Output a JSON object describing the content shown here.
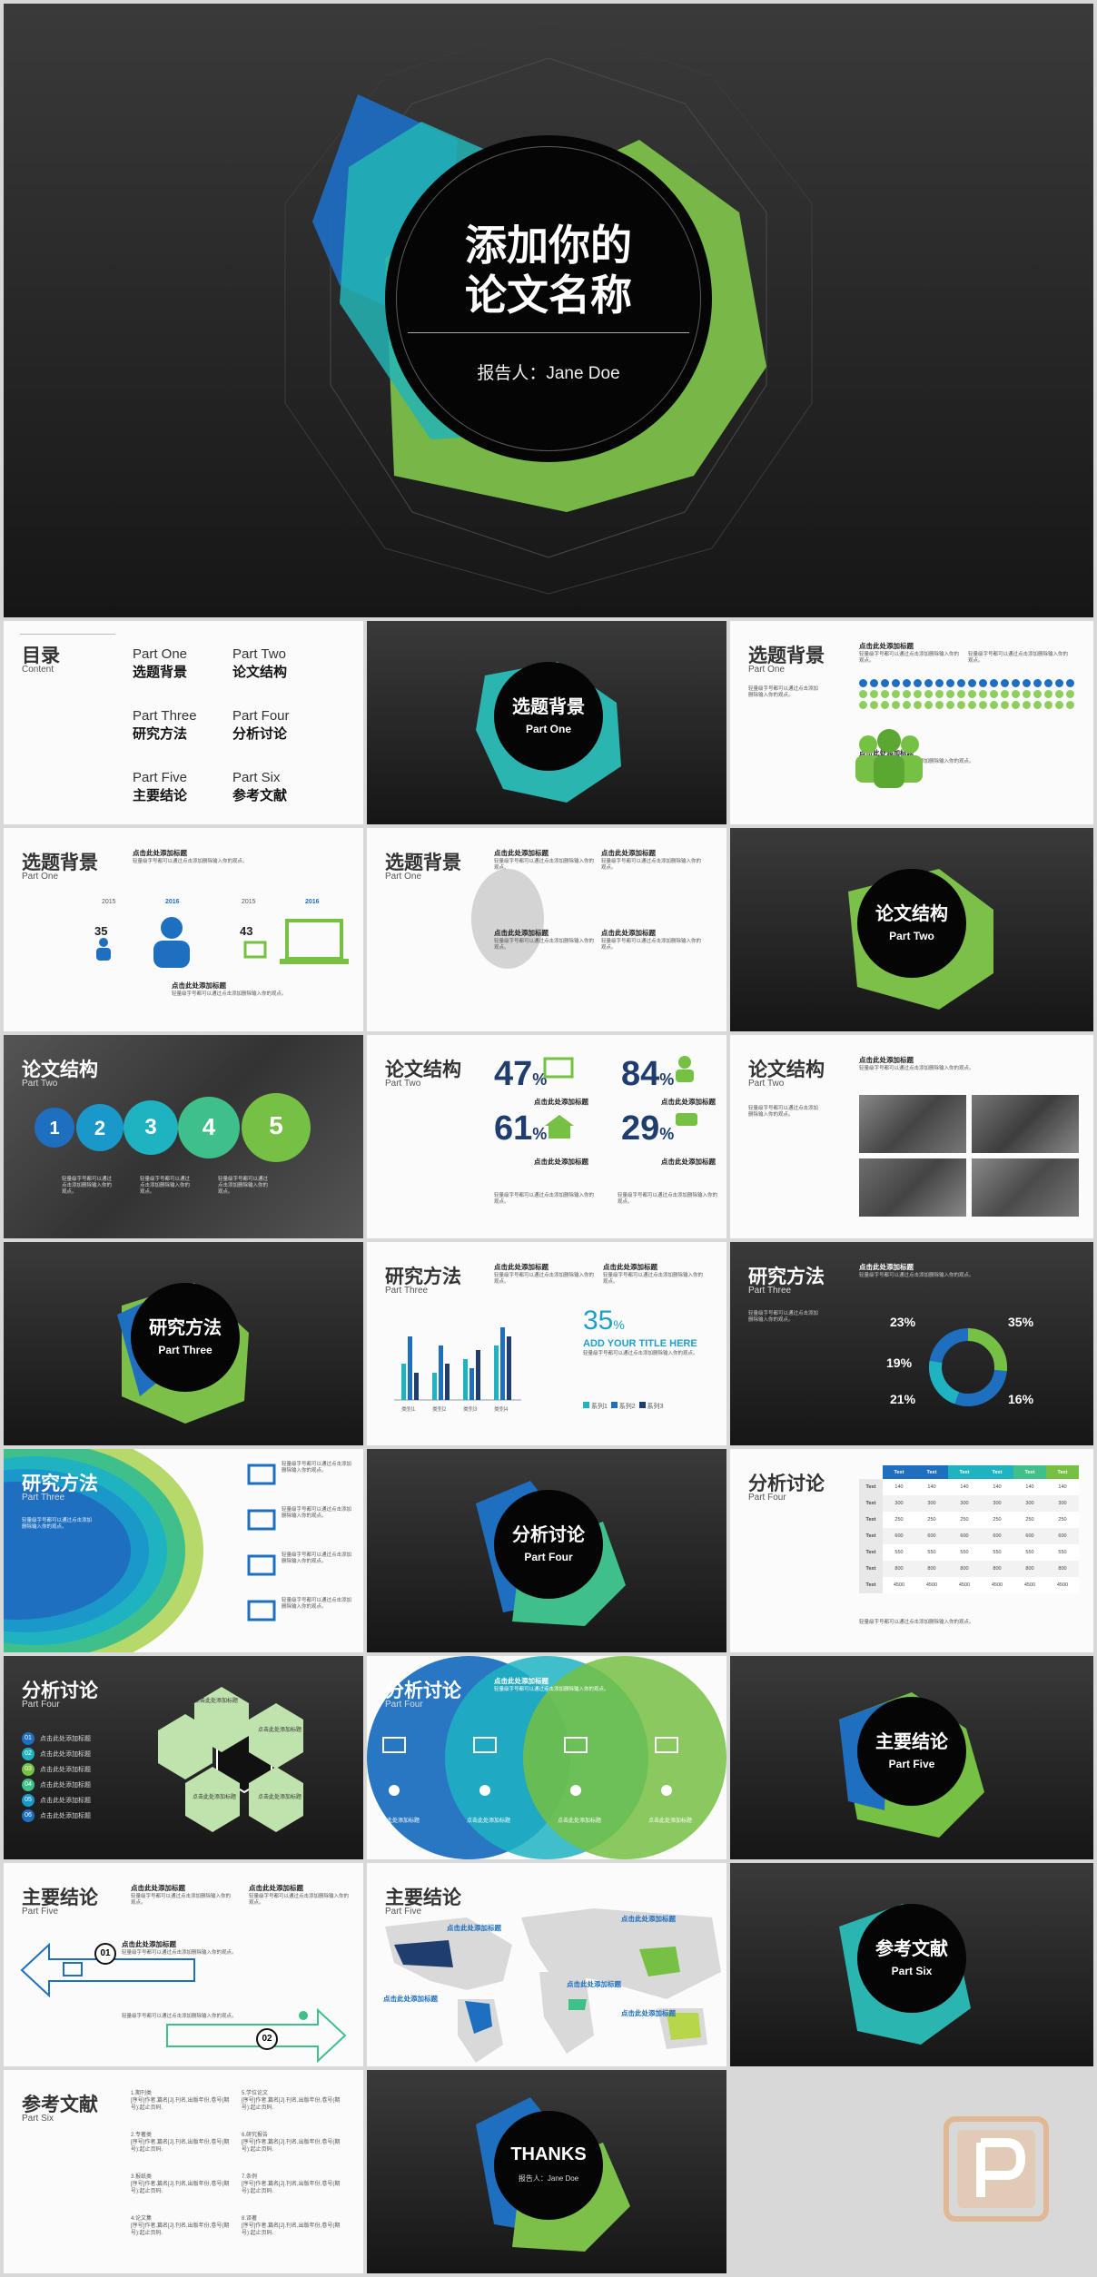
{
  "colors": {
    "blue": "#1e6fbf",
    "teal": "#1fb3c2",
    "green": "#76c043",
    "dark": "#0a0a0a"
  },
  "cover": {
    "title_line1": "添加你的",
    "title_line2": "论文名称",
    "reporter": "报告人：Jane Doe"
  },
  "toc": {
    "title": "目录",
    "subtitle": "Content",
    "items": [
      {
        "en": "Part One",
        "cn": "选题背景"
      },
      {
        "en": "Part Two",
        "cn": "论文结构"
      },
      {
        "en": "Part Three",
        "cn": "研究方法"
      },
      {
        "en": "Part Four",
        "cn": "分析讨论"
      },
      {
        "en": "Part Five",
        "cn": "主要结论"
      },
      {
        "en": "Part Six",
        "cn": "参考文献"
      }
    ]
  },
  "sections": {
    "s1": {
      "cn": "选题背景",
      "en": "Part One"
    },
    "s2": {
      "cn": "论文结构",
      "en": "Part Two"
    },
    "s3": {
      "cn": "研究方法",
      "en": "Part Three"
    },
    "s4": {
      "cn": "分析讨论",
      "en": "Part Four"
    },
    "s5": {
      "cn": "主要结论",
      "en": "Part Five"
    },
    "s6": {
      "cn": "参考文献",
      "en": "Part Six"
    }
  },
  "heading": "点击此处添加标题",
  "body": "轻量级字号都可以通过点击添加删除输入你的观点。",
  "bg2": {
    "y1": "2015",
    "y2": "2016",
    "y3": "2015",
    "y4": "2016",
    "v1": "35",
    "v2": "43"
  },
  "steps": [
    "1",
    "2",
    "3",
    "4",
    "5"
  ],
  "stats": [
    {
      "v": "47",
      "u": "%"
    },
    {
      "v": "84",
      "u": "%"
    },
    {
      "v": "61",
      "u": "%"
    },
    {
      "v": "29",
      "u": "%"
    }
  ],
  "m2": {
    "pct": "35",
    "pct_unit": "%",
    "add_title": "ADD YOUR TITLE HERE",
    "legend": [
      "系列1",
      "系列2",
      "系列3"
    ],
    "categories": [
      "类别1",
      "类别2",
      "类别3",
      "类别4"
    ]
  },
  "donut": {
    "p1": "23%",
    "p2": "35%",
    "p3": "19%",
    "p4": "21%",
    "p5": "16%"
  },
  "table": {
    "header": [
      "Text",
      "Text",
      "Text",
      "Text",
      "Text",
      "Text"
    ],
    "rows": [
      [
        "Text",
        "140",
        "140",
        "140",
        "140",
        "140",
        "140"
      ],
      [
        "Text",
        "300",
        "300",
        "300",
        "300",
        "300",
        "300"
      ],
      [
        "Text",
        "250",
        "250",
        "250",
        "250",
        "250",
        "250"
      ],
      [
        "Text",
        "600",
        "600",
        "600",
        "600",
        "600",
        "600"
      ],
      [
        "Text",
        "550",
        "550",
        "550",
        "550",
        "550",
        "550"
      ],
      [
        "Text",
        "800",
        "800",
        "800",
        "800",
        "800",
        "800"
      ],
      [
        "Text",
        "4500",
        "4500",
        "4500",
        "4500",
        "4500",
        "4500"
      ]
    ]
  },
  "hexnums": [
    "01",
    "02",
    "03",
    "04",
    "05",
    "06"
  ],
  "hexlabel": "点击此处添加标题",
  "refs": [
    "1.期刊类",
    "2.专著类",
    "3.报纸类",
    "4.论文集",
    "5.学位论文",
    "6.研究报告",
    "7.条例",
    "8.译著"
  ],
  "refdesc": "[序号]作者.篇名[J].刊名,出版年份,卷号(期号):起止页码.",
  "thanks": {
    "title": "THANKS",
    "reporter": "报告人：Jane Doe"
  }
}
